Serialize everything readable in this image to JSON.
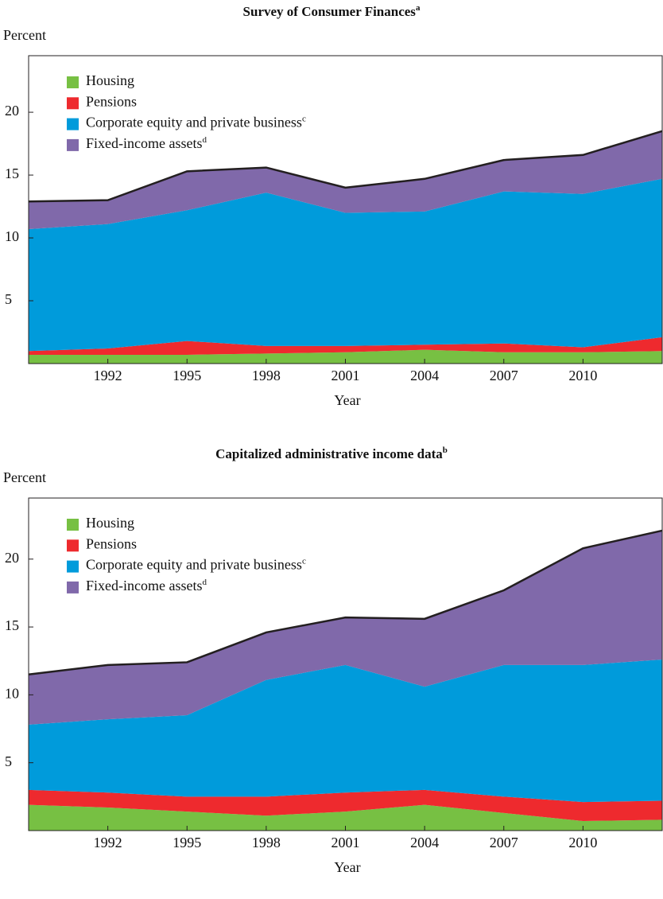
{
  "chart_data": [
    {
      "type": "area",
      "title": "Survey of Consumer Finances",
      "title_sup": "a",
      "ylabel": "Percent",
      "xlabel": "Year",
      "x": [
        1989,
        1992,
        1995,
        1998,
        2001,
        2004,
        2007,
        2010,
        2013
      ],
      "xlim": [
        1989,
        2013
      ],
      "xticks": [
        1992,
        1995,
        1998,
        2001,
        2004,
        2007,
        2010
      ],
      "ylim": [
        0,
        24.5
      ],
      "yticks": [
        5,
        10,
        15,
        20
      ],
      "legend": "upper left",
      "series": [
        {
          "name": "Housing",
          "color": "#77c043",
          "values": [
            0.7,
            0.7,
            0.7,
            0.8,
            0.9,
            1.1,
            0.9,
            0.9,
            1.0
          ]
        },
        {
          "name": "Pensions",
          "color": "#ee2a2e",
          "values": [
            0.3,
            0.5,
            1.1,
            0.6,
            0.5,
            0.4,
            0.7,
            0.4,
            1.1
          ]
        },
        {
          "name": "Corporate equity and private business",
          "name_sup": "c",
          "color": "#009bdb",
          "values": [
            9.7,
            9.9,
            10.4,
            12.2,
            10.6,
            10.6,
            12.1,
            12.2,
            12.6
          ]
        },
        {
          "name": "Fixed-income assets",
          "name_sup": "d",
          "color": "#8069aa",
          "values": [
            2.2,
            1.9,
            3.1,
            2.0,
            2.0,
            2.6,
            2.5,
            3.1,
            3.8
          ]
        }
      ]
    },
    {
      "type": "area",
      "title": "Capitalized administrative income data",
      "title_sup": "b",
      "ylabel": "Percent",
      "xlabel": "Year",
      "x": [
        1989,
        1992,
        1995,
        1998,
        2001,
        2004,
        2007,
        2010,
        2013
      ],
      "xlim": [
        1989,
        2013
      ],
      "xticks": [
        1992,
        1995,
        1998,
        2001,
        2004,
        2007,
        2010
      ],
      "ylim": [
        0,
        24.5
      ],
      "yticks": [
        5,
        10,
        15,
        20
      ],
      "legend": "upper left",
      "series": [
        {
          "name": "Housing",
          "color": "#77c043",
          "values": [
            1.9,
            1.7,
            1.4,
            1.1,
            1.4,
            1.9,
            1.3,
            0.7,
            0.8
          ]
        },
        {
          "name": "Pensions",
          "color": "#ee2a2e",
          "values": [
            1.1,
            1.1,
            1.1,
            1.4,
            1.4,
            1.1,
            1.2,
            1.4,
            1.4
          ]
        },
        {
          "name": "Corporate equity and private business",
          "name_sup": "c",
          "color": "#009bdb",
          "values": [
            4.8,
            5.4,
            6.0,
            8.6,
            9.4,
            7.6,
            9.7,
            10.1,
            10.4
          ]
        },
        {
          "name": "Fixed-income assets",
          "name_sup": "d",
          "color": "#8069aa",
          "values": [
            3.7,
            4.0,
            3.9,
            3.5,
            3.5,
            5.0,
            5.5,
            8.6,
            9.5
          ]
        }
      ]
    }
  ]
}
